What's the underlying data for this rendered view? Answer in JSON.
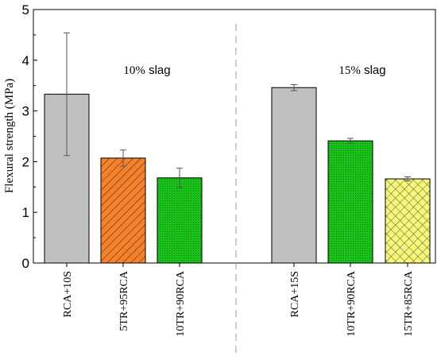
{
  "chart_data": {
    "type": "bar",
    "ylabel": "Flexural strength (MPa)",
    "xlabel": "",
    "ylim": [
      0,
      5
    ],
    "yticks": [
      "0",
      "1",
      "2",
      "3",
      "4",
      "5"
    ],
    "grid": false,
    "groups": [
      {
        "label_prefix": "10%",
        "label_suffix": " slag"
      },
      {
        "label_prefix": "15%",
        "label_suffix": " slag"
      }
    ],
    "categories": [
      "RCA+10S",
      "5TR+95RCA",
      "10TR+90RCA",
      "RCA+15S",
      "10TR+90RCA",
      "15TR+85RCA"
    ],
    "values": [
      3.33,
      2.07,
      1.68,
      3.46,
      2.41,
      1.66
    ],
    "errors": [
      1.21,
      0.16,
      0.19,
      0.06,
      0.05,
      0.04
    ],
    "colors": [
      "#c0c0c0",
      "#f4822c",
      "#17c417",
      "#c0c0c0",
      "#17c417",
      "#f7f777"
    ],
    "patterns": [
      "none",
      "diagonal",
      "dots",
      "none",
      "dots",
      "crosshatch"
    ]
  }
}
